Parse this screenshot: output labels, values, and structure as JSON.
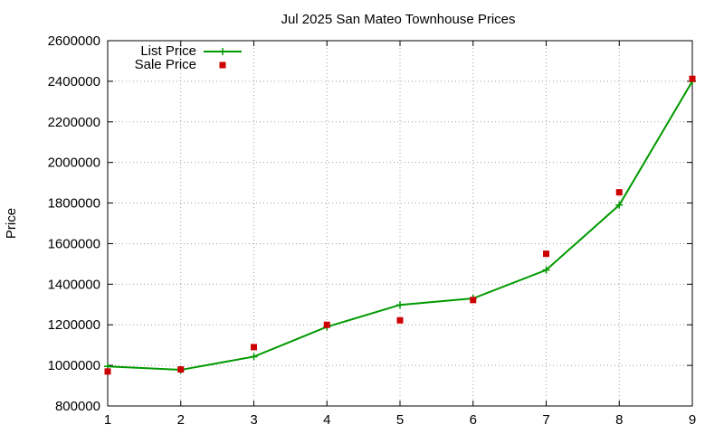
{
  "chart_data": {
    "type": "line",
    "title": "Jul 2025 San Mateo Townhouse Prices",
    "xlabel": "",
    "ylabel": "Price",
    "x": [
      1,
      2,
      3,
      4,
      5,
      6,
      7,
      8,
      9
    ],
    "xticks": [
      "1",
      "2",
      "3",
      "4",
      "5",
      "6",
      "7",
      "8",
      "9"
    ],
    "yticks": [
      "800000",
      "1000000",
      "1200000",
      "1400000",
      "1600000",
      "1800000",
      "2000000",
      "2200000",
      "2400000",
      "2600000"
    ],
    "xlim": [
      1,
      9
    ],
    "ylim": [
      800000,
      2600000
    ],
    "grid": true,
    "legend_position": "top-left",
    "series": [
      {
        "name": "List Price",
        "style": "line-with-plus-markers",
        "color": "#009900",
        "values": [
          995000,
          978000,
          1043000,
          1190000,
          1298000,
          1330000,
          1470000,
          1790000,
          2400000
        ]
      },
      {
        "name": "Sale Price",
        "style": "square-markers",
        "color": "#cc0000",
        "values": [
          970000,
          980000,
          1090000,
          1200000,
          1222000,
          1322000,
          1550000,
          1853000,
          2412000
        ]
      }
    ]
  }
}
